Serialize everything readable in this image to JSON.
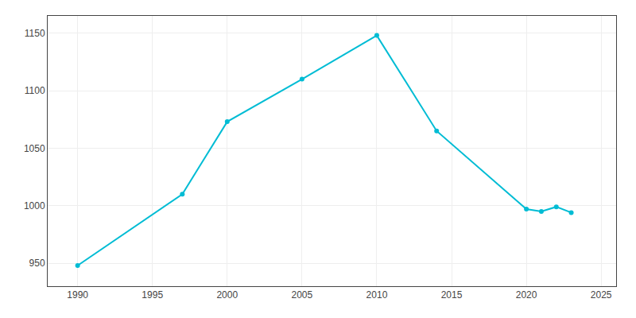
{
  "chart_data": {
    "type": "line",
    "x": [
      1990,
      1997,
      2000,
      2005,
      2010,
      2014,
      2020,
      2021,
      2022,
      2023
    ],
    "values": [
      948,
      1010,
      1073,
      1110,
      1148,
      1065,
      997,
      995,
      999,
      994
    ],
    "color": "#00BCD4",
    "marker": "circle",
    "xlim": [
      1988,
      2026
    ],
    "ylim": [
      930,
      1165
    ],
    "xticks": [
      1990,
      1995,
      2000,
      2005,
      2010,
      2015,
      2020,
      2025
    ],
    "yticks": [
      950,
      1000,
      1050,
      1100,
      1150
    ],
    "grid": true
  }
}
